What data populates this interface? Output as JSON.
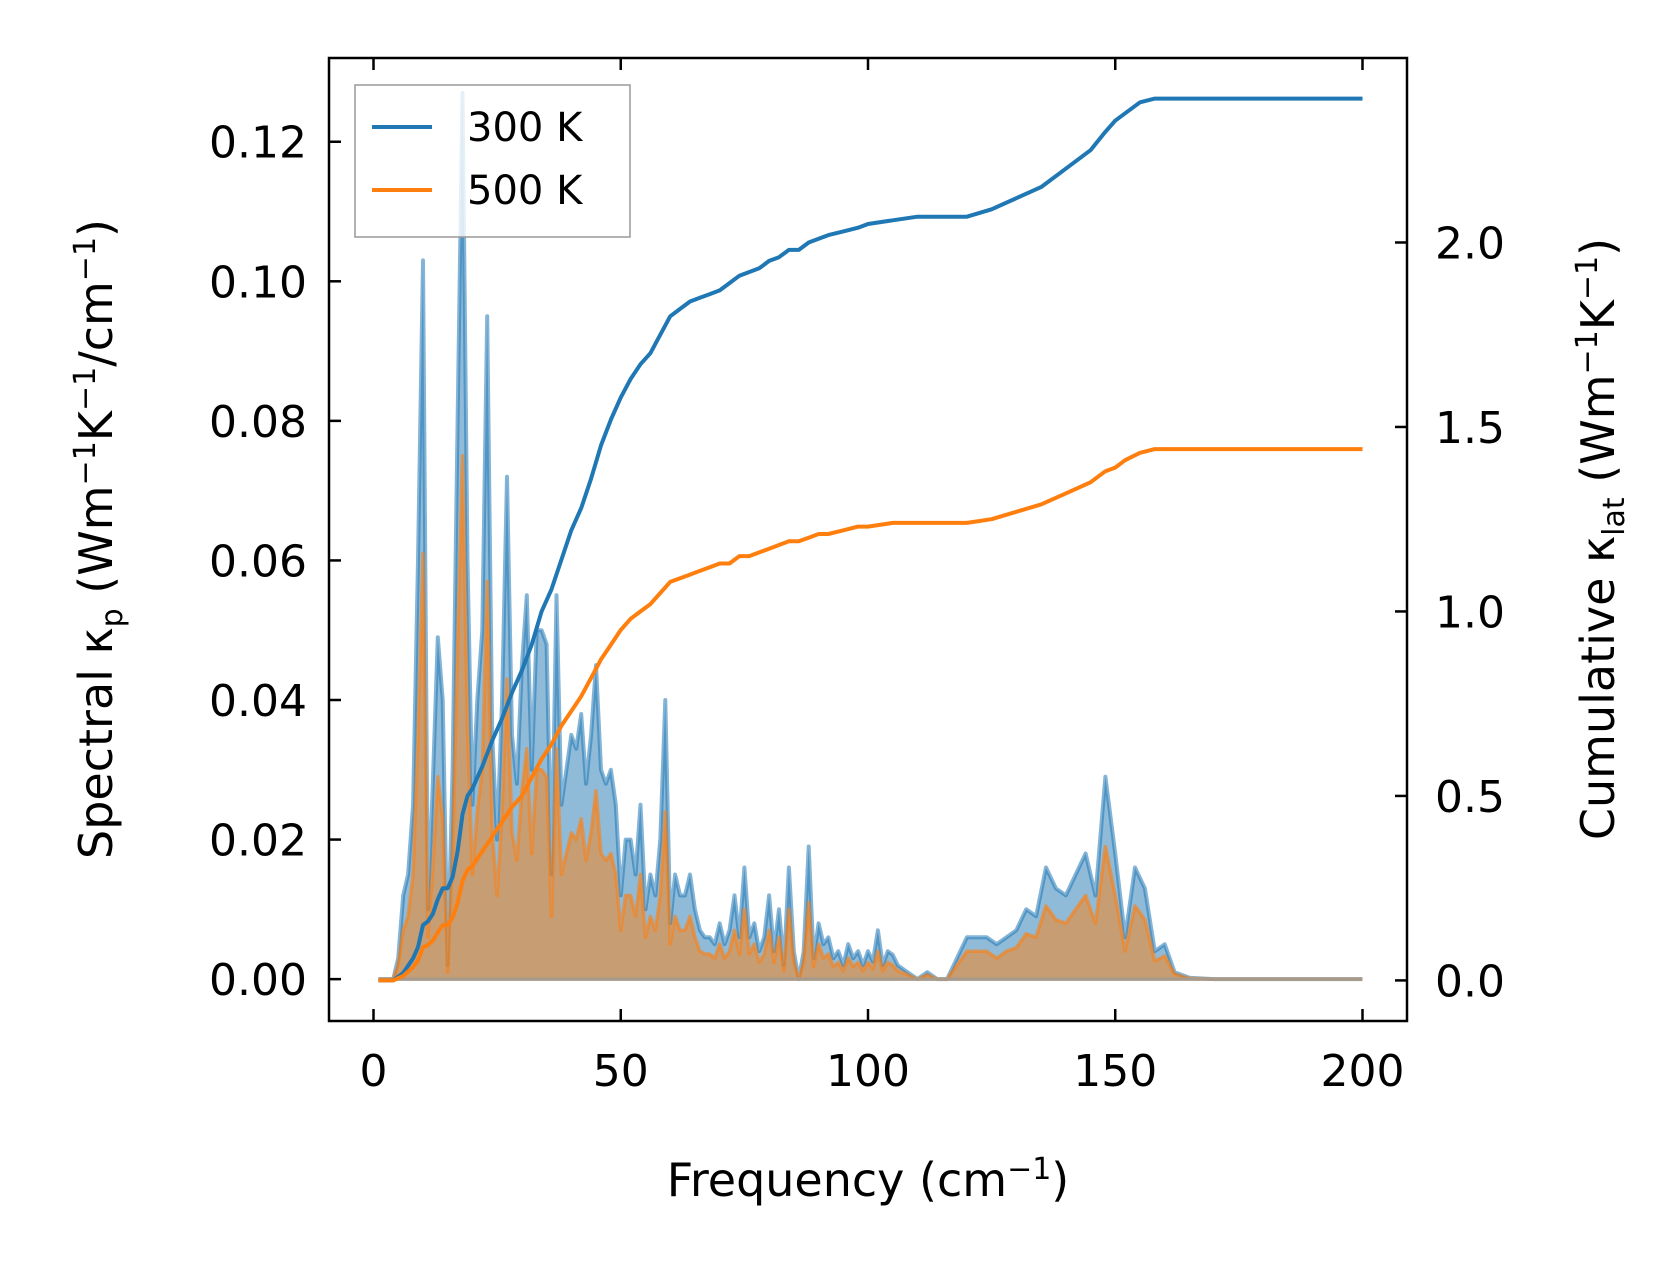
{
  "chart_data": {
    "type": "line",
    "xlabel": "Frequency (cm",
    "xlabel_sup": "−1",
    "xlabel_end": ")",
    "ylabel_left": {
      "pre": "Spectral κ",
      "sub": "p",
      "mid1": " (Wm",
      "sup1": "−1",
      "mid2": "K",
      "sup2": "−1",
      "mid3": "/cm",
      "sup3": "−1",
      "end": ")"
    },
    "ylabel_right": {
      "pre": "Cumulative κ",
      "sub": "lat",
      "mid1": " (Wm",
      "sup1": "−1",
      "mid2": "K",
      "sup2": "−1",
      "end": ")"
    },
    "xlim": [
      -9,
      209
    ],
    "ylim_left": [
      -0.006,
      0.132
    ],
    "ylim_right": [
      -0.11,
      2.5
    ],
    "xticks": [
      0,
      50,
      100,
      150,
      200
    ],
    "xtick_labels": [
      "0",
      "50",
      "100",
      "150",
      "200"
    ],
    "yticks_left": [
      0.0,
      0.02,
      0.04,
      0.06,
      0.08,
      0.1,
      0.12
    ],
    "ytick_labels_left": [
      "0.00",
      "0.02",
      "0.04",
      "0.06",
      "0.08",
      "0.10",
      "0.12"
    ],
    "yticks_right": [
      0.0,
      0.5,
      1.0,
      1.5,
      2.0
    ],
    "ytick_labels_right": [
      "0.0",
      "0.5",
      "1.0",
      "1.5",
      "2.0"
    ],
    "legend": {
      "location": "top-left",
      "entries": [
        "300 K",
        "500 K"
      ]
    },
    "colors": {
      "s300": "#1f77b4",
      "s500": "#ff7f0e",
      "fill300": "#1f77b4",
      "fill500": "#ff7f0e"
    },
    "spectral": {
      "x": [
        1,
        3,
        4,
        5,
        6,
        7,
        8,
        9,
        10,
        11,
        12,
        13,
        14,
        15,
        16,
        17,
        18,
        19,
        20,
        21,
        22,
        23,
        24,
        25,
        26,
        27,
        28,
        29,
        30,
        31,
        32,
        33,
        34,
        35,
        36,
        37,
        38,
        39,
        40,
        41,
        42,
        43,
        44,
        45,
        46,
        47,
        48,
        49,
        50,
        51,
        52,
        53,
        54,
        55,
        56,
        57,
        58,
        59,
        60,
        61,
        62,
        63,
        64,
        65,
        66,
        67,
        68,
        69,
        70,
        71,
        72,
        73,
        74,
        75,
        76,
        77,
        78,
        79,
        80,
        81,
        82,
        83,
        84,
        85,
        86,
        87,
        88,
        89,
        90,
        91,
        92,
        93,
        94,
        95,
        96,
        97,
        98,
        99,
        100,
        101,
        102,
        103,
        104,
        105,
        106,
        108,
        110,
        112,
        114,
        116,
        118,
        120,
        122,
        124,
        126,
        128,
        130,
        132,
        134,
        136,
        138,
        140,
        142,
        144,
        146,
        148,
        150,
        152,
        154,
        156,
        158,
        160,
        162,
        165,
        170,
        180,
        190,
        200
      ],
      "k300": [
        0,
        0,
        0,
        0.003,
        0.012,
        0.015,
        0.025,
        0.06,
        0.103,
        0.01,
        0.028,
        0.049,
        0.04,
        0.002,
        0.03,
        0.08,
        0.127,
        0.06,
        0.025,
        0.04,
        0.05,
        0.095,
        0.035,
        0.02,
        0.04,
        0.072,
        0.035,
        0.028,
        0.045,
        0.055,
        0.03,
        0.05,
        0.05,
        0.048,
        0.015,
        0.055,
        0.025,
        0.03,
        0.035,
        0.033,
        0.038,
        0.028,
        0.035,
        0.045,
        0.03,
        0.028,
        0.03,
        0.025,
        0.012,
        0.02,
        0.02,
        0.015,
        0.025,
        0.01,
        0.015,
        0.012,
        0.02,
        0.04,
        0.008,
        0.015,
        0.012,
        0.012,
        0.015,
        0.01,
        0.007,
        0.006,
        0.006,
        0.005,
        0.008,
        0.005,
        0.007,
        0.012,
        0.006,
        0.016,
        0.006,
        0.008,
        0.004,
        0.006,
        0.012,
        0.004,
        0.01,
        0.002,
        0.016,
        0.004,
        0.0,
        0.004,
        0.019,
        0.003,
        0.008,
        0.005,
        0.006,
        0.003,
        0.004,
        0.002,
        0.005,
        0.003,
        0.004,
        0.002,
        0.004,
        0.0025,
        0.007,
        0.002,
        0.004,
        0.0035,
        0.002,
        0.001,
        0.0,
        0.001,
        0.0,
        0.0,
        0.003,
        0.006,
        0.006,
        0.006,
        0.005,
        0.006,
        0.007,
        0.01,
        0.009,
        0.016,
        0.013,
        0.012,
        0.015,
        0.018,
        0.012,
        0.029,
        0.018,
        0.006,
        0.016,
        0.013,
        0.004,
        0.005,
        0.001,
        0.0002,
        0,
        0,
        0,
        0
      ],
      "k500": [
        0,
        0,
        0,
        0.002,
        0.007,
        0.009,
        0.015,
        0.035,
        0.061,
        0.006,
        0.016,
        0.029,
        0.023,
        0.001,
        0.018,
        0.048,
        0.075,
        0.036,
        0.015,
        0.024,
        0.03,
        0.057,
        0.021,
        0.012,
        0.024,
        0.043,
        0.021,
        0.017,
        0.027,
        0.033,
        0.018,
        0.03,
        0.03,
        0.029,
        0.009,
        0.033,
        0.015,
        0.018,
        0.021,
        0.02,
        0.023,
        0.017,
        0.021,
        0.027,
        0.018,
        0.017,
        0.018,
        0.015,
        0.007,
        0.012,
        0.012,
        0.009,
        0.015,
        0.006,
        0.009,
        0.007,
        0.012,
        0.024,
        0.005,
        0.009,
        0.007,
        0.007,
        0.009,
        0.006,
        0.004,
        0.0036,
        0.0036,
        0.003,
        0.005,
        0.003,
        0.004,
        0.007,
        0.0036,
        0.01,
        0.0036,
        0.005,
        0.0024,
        0.0036,
        0.007,
        0.0024,
        0.006,
        0.0012,
        0.01,
        0.0024,
        0.0,
        0.0024,
        0.011,
        0.0018,
        0.005,
        0.003,
        0.0036,
        0.0018,
        0.0024,
        0.0012,
        0.003,
        0.0018,
        0.0024,
        0.0012,
        0.0024,
        0.0015,
        0.004,
        0.0012,
        0.0024,
        0.002,
        0.0012,
        0.0006,
        0.0,
        0.0006,
        0.0,
        0.0,
        0.002,
        0.004,
        0.004,
        0.004,
        0.003,
        0.004,
        0.0045,
        0.0065,
        0.006,
        0.0105,
        0.0085,
        0.008,
        0.01,
        0.012,
        0.008,
        0.019,
        0.012,
        0.004,
        0.0105,
        0.0085,
        0.0026,
        0.0033,
        0.0007,
        0.0001,
        0,
        0,
        0,
        0
      ]
    },
    "cumulative": {
      "x": [
        1,
        3,
        4,
        5,
        6,
        7,
        8,
        9,
        10,
        11,
        12,
        13,
        14,
        15,
        16,
        17,
        18,
        19,
        20,
        22,
        24,
        26,
        28,
        30,
        32,
        34,
        36,
        38,
        40,
        42,
        44,
        46,
        48,
        50,
        52,
        54,
        56,
        58,
        60,
        62,
        64,
        66,
        68,
        70,
        72,
        74,
        76,
        78,
        80,
        82,
        84,
        86,
        88,
        90,
        92,
        95,
        98,
        100,
        105,
        110,
        115,
        118,
        120,
        125,
        130,
        135,
        140,
        145,
        148,
        150,
        152,
        155,
        158,
        160,
        170,
        180,
        190,
        200
      ],
      "k300": [
        0,
        0,
        0,
        0.01,
        0.02,
        0.04,
        0.06,
        0.09,
        0.15,
        0.16,
        0.18,
        0.22,
        0.25,
        0.25,
        0.28,
        0.35,
        0.45,
        0.5,
        0.52,
        0.58,
        0.65,
        0.71,
        0.78,
        0.84,
        0.91,
        1.0,
        1.06,
        1.14,
        1.22,
        1.28,
        1.36,
        1.45,
        1.52,
        1.58,
        1.63,
        1.67,
        1.7,
        1.75,
        1.8,
        1.82,
        1.84,
        1.85,
        1.86,
        1.87,
        1.89,
        1.91,
        1.92,
        1.93,
        1.95,
        1.96,
        1.98,
        1.98,
        2.0,
        2.01,
        2.02,
        2.03,
        2.04,
        2.05,
        2.06,
        2.07,
        2.07,
        2.07,
        2.07,
        2.09,
        2.12,
        2.15,
        2.2,
        2.25,
        2.3,
        2.33,
        2.35,
        2.38,
        2.39,
        2.39,
        2.39,
        2.39,
        2.39,
        2.39
      ],
      "k500": [
        0,
        0,
        0,
        0.006,
        0.012,
        0.024,
        0.036,
        0.054,
        0.09,
        0.096,
        0.108,
        0.13,
        0.15,
        0.15,
        0.17,
        0.21,
        0.27,
        0.3,
        0.31,
        0.35,
        0.39,
        0.43,
        0.47,
        0.5,
        0.55,
        0.6,
        0.64,
        0.69,
        0.73,
        0.77,
        0.82,
        0.87,
        0.91,
        0.95,
        0.98,
        1.0,
        1.02,
        1.05,
        1.08,
        1.09,
        1.1,
        1.11,
        1.12,
        1.13,
        1.13,
        1.15,
        1.15,
        1.16,
        1.17,
        1.18,
        1.19,
        1.19,
        1.2,
        1.21,
        1.21,
        1.22,
        1.23,
        1.23,
        1.24,
        1.24,
        1.24,
        1.24,
        1.24,
        1.25,
        1.27,
        1.29,
        1.32,
        1.35,
        1.38,
        1.39,
        1.41,
        1.43,
        1.44,
        1.44,
        1.44,
        1.44,
        1.44,
        1.44
      ]
    }
  }
}
